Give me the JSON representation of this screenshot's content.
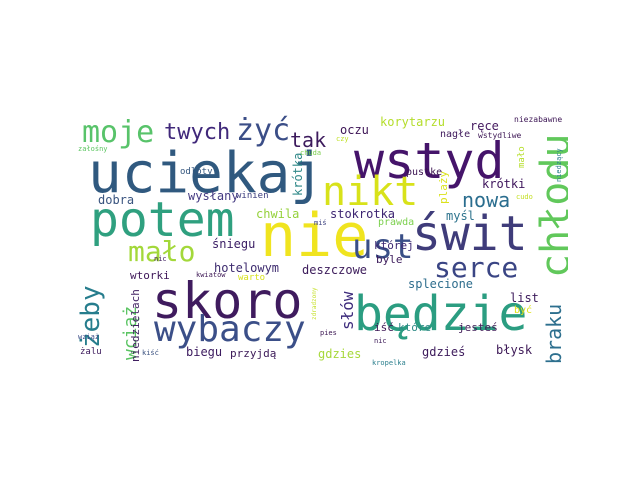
{
  "words": {
    "nie": "nie",
    "skoro": "skoro",
    "wstyd": "wstyd",
    "uciekaj": "uciekaj",
    "potem": "potem",
    "swit": "świt",
    "bedzie": "będzie",
    "wybaczy": "wybaczy",
    "nikt": "nikt",
    "chlodu": "chłodu",
    "moje": "moje",
    "zyc": "żyć",
    "ust": "ust",
    "serce": "serce",
    "malo": "mało",
    "zeby": "żeby",
    "twych": "twych",
    "tak": "tak",
    "nowa": "nowa",
    "braku": "braku",
    "wciaz": "wciąż",
    "slow": "słów",
    "oczu": "oczu",
    "korytarzu": "korytarzu",
    "rece": "ręce",
    "krotki": "krótki",
    "krotka": "krótka",
    "stokrotka": "stokrotka",
    "chwila": "chwila",
    "wyslany": "wysłany",
    "dobra": "dobra",
    "sniegu": "śniegu",
    "mysl": "myśl",
    "hotelowym": "hotelowym",
    "deszczowe": "deszczowe",
    "ktorej": "której",
    "splecione": "splecione",
    "list": "list",
    "biegu": "biegu",
    "przyjda": "przyjdą",
    "gdzies": "gdzies",
    "gdzies2": "gdzieś",
    "blysk": "błysk",
    "wtorki": "wtorki",
    "niedzielach": "niedzielach",
    "iść": "iść",
    "ktore": "które",
    "jestes": "jesteś",
    "byle": "byle",
    "byc": "być",
    "plazy": "plaży",
    "prawda": "prawda",
    "pustke": "pustke",
    "nagle": "nagłe",
    "niezabawne": "niezabawne",
    "wstydliwe": "wstydliwe",
    "malo2": "mało",
    "zalosny": "załośny",
    "odloty": "odloty",
    "chuda": "chuda",
    "czy": "czy",
    "winien": "winien",
    "mis": "miś",
    "nic": "nic",
    "kwiatow": "kwiatów",
    "warto": "warto",
    "wziaz": "wziąż",
    "zalu": "żalu",
    "kisc": "kiść",
    "pies": "pies",
    "nic2": "nic",
    "kropelka": "kropelka",
    "zdradzony": "zdradzony",
    "cudo": "cudo",
    "niedzacy": "niedzący"
  }
}
